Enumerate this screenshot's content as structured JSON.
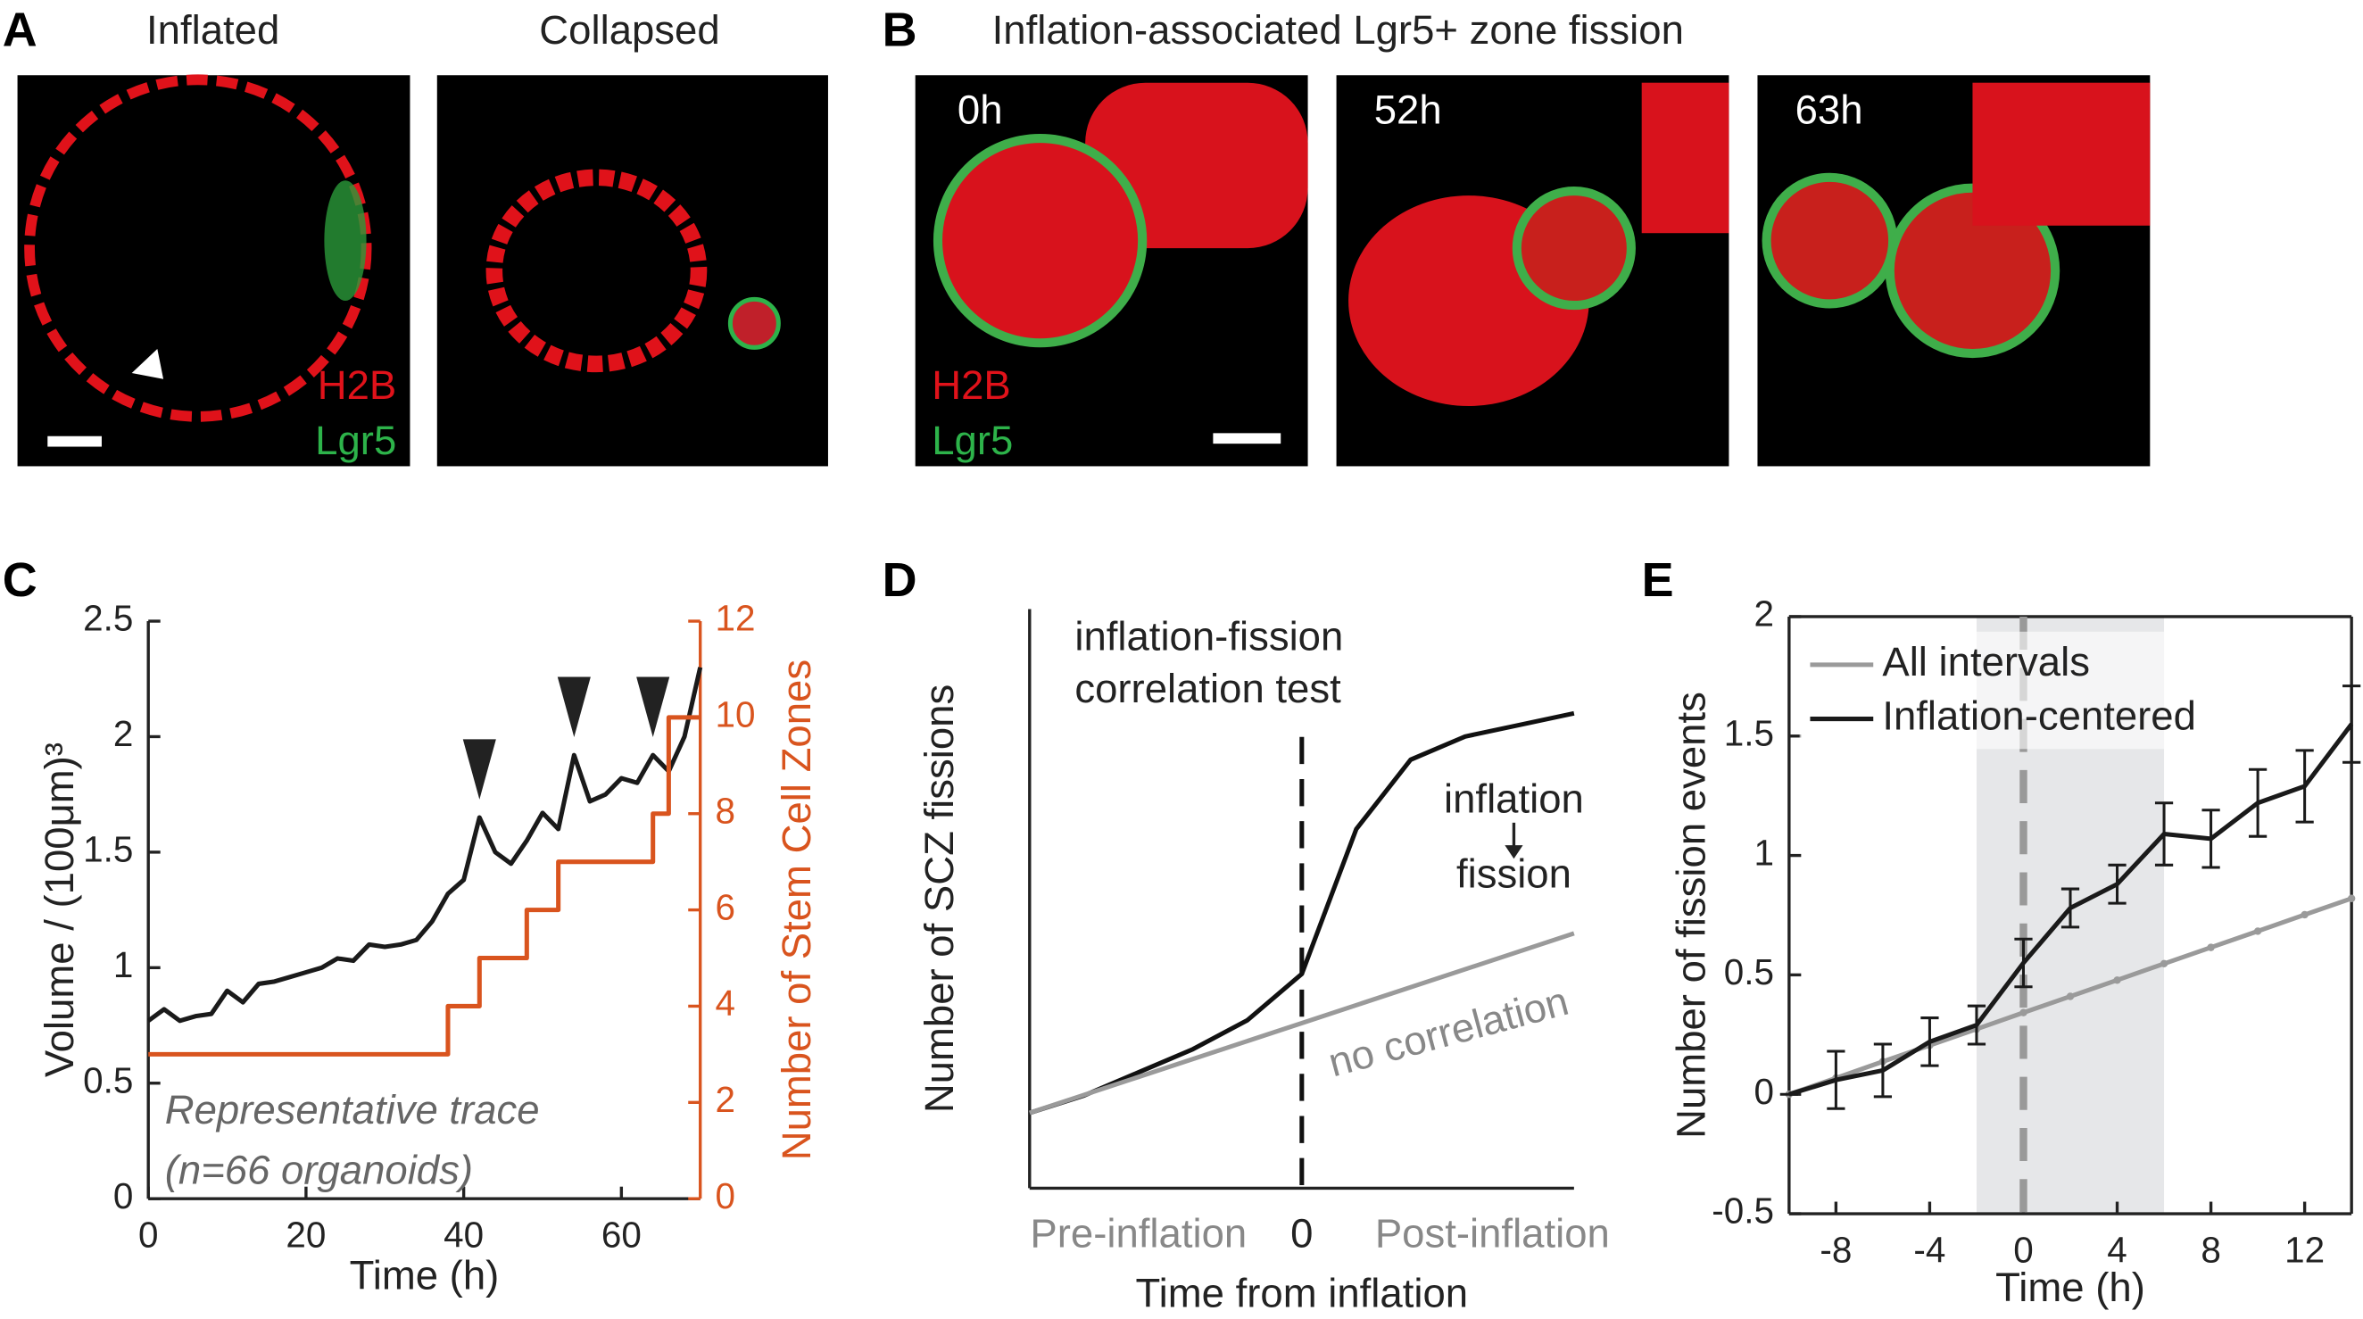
{
  "panels": [
    {
      "letter": "A",
      "images": [
        {
          "title": "Inflated",
          "channels": [
            "H2B",
            "Lgr5"
          ]
        },
        {
          "title": "Collapsed"
        }
      ]
    },
    {
      "letter": "B",
      "title": "Inflation-associated Lgr5+ zone fission",
      "images": [
        {
          "time": "0h",
          "channels": [
            "H2B",
            "Lgr5"
          ]
        },
        {
          "time": "52h"
        },
        {
          "time": "63h"
        }
      ]
    }
  ],
  "chart_data": [
    {
      "type": "line",
      "panel": "C",
      "xlabel": "Time (h)",
      "ylabel": "Volume / (100μm)³",
      "y2label": "Number of Stem Cell Zones",
      "annotation": [
        "Representative trace",
        "(n=66 organoids)"
      ],
      "x": [
        0,
        2,
        4,
        6,
        8,
        10,
        12,
        14,
        16,
        18,
        20,
        22,
        24,
        26,
        28,
        30,
        32,
        34,
        36,
        38,
        40,
        42,
        44,
        46,
        48,
        50,
        52,
        54,
        56,
        58,
        60,
        62,
        64,
        66,
        68,
        70
      ],
      "series": [
        {
          "color": "#1a1a1a",
          "values": [
            0.77,
            0.82,
            0.77,
            0.79,
            0.8,
            0.9,
            0.85,
            0.93,
            0.94,
            0.96,
            0.98,
            1.0,
            1.04,
            1.03,
            1.1,
            1.09,
            1.1,
            1.12,
            1.2,
            1.32,
            1.38,
            1.65,
            1.5,
            1.45,
            1.55,
            1.67,
            1.6,
            1.92,
            1.72,
            1.75,
            1.82,
            1.8,
            1.92,
            1.85,
            2.0,
            2.3
          ]
        },
        {
          "color": "#d9541e",
          "axis": "y2",
          "step": true,
          "x": [
            0,
            38,
            42,
            48,
            52,
            64,
            66
          ],
          "values": [
            3,
            4,
            5,
            6,
            7,
            8,
            10
          ]
        }
      ],
      "peak_arrows_x": [
        42,
        54,
        64
      ],
      "xlim": [
        0,
        70
      ],
      "xticks": [
        0,
        20,
        40,
        60
      ],
      "ylim": [
        0,
        2.5
      ],
      "yticks": [
        0,
        0.5,
        1,
        1.5,
        2,
        2.5
      ],
      "y2lim": [
        0,
        12
      ],
      "y2ticks": [
        0,
        2,
        4,
        6,
        8,
        10,
        12
      ]
    },
    {
      "type": "line",
      "panel": "D",
      "xlabel": "Time from inflation",
      "ylabel": "Number of SCZ fissions",
      "note": [
        "inflation-fission",
        "correlation test"
      ],
      "curve_note": [
        "inflation",
        "fission"
      ],
      "line_note": "no correlation",
      "series": [
        {
          "color": "#111111",
          "x": [
            -1,
            -0.8,
            -0.6,
            -0.4,
            -0.2,
            0,
            0.2,
            0.4,
            0.6,
            0.8,
            1
          ],
          "values": [
            0.13,
            0.16,
            0.2,
            0.24,
            0.29,
            0.37,
            0.62,
            0.74,
            0.78,
            0.8,
            0.82
          ]
        },
        {
          "color": "#9a9a9a",
          "x": [
            -1,
            1
          ],
          "values": [
            0.13,
            0.44
          ]
        }
      ],
      "xlim": [
        -1,
        1
      ],
      "xticks": [
        {
          "value": -0.6,
          "label": "Pre-inflation"
        },
        0,
        {
          "value": 0.7,
          "label": "Post-inflation"
        }
      ],
      "ylim": [
        0,
        1
      ]
    },
    {
      "type": "line",
      "panel": "E",
      "xlabel": "Time (h)",
      "ylabel": "Number of fission events",
      "legend": "upper left",
      "x": [
        -10,
        -8,
        -6,
        -4,
        -2,
        0,
        2,
        4,
        6,
        8,
        10,
        12,
        14
      ],
      "shaded_x": [
        -2,
        6
      ],
      "series": [
        {
          "name": "All intervals",
          "color": "#9a9a9a",
          "values": [
            0,
            0.068,
            0.137,
            0.205,
            0.273,
            0.342,
            0.41,
            0.478,
            0.547,
            0.615,
            0.683,
            0.752,
            0.82
          ]
        },
        {
          "name": "Inflation-centered",
          "color": "#1a1a1a",
          "values": [
            0,
            0.06,
            0.1,
            0.22,
            0.29,
            0.55,
            0.78,
            0.88,
            1.09,
            1.07,
            1.22,
            1.29,
            1.55
          ],
          "errors": [
            0,
            0.12,
            0.11,
            0.1,
            0.08,
            0.1,
            0.08,
            0.08,
            0.13,
            0.12,
            0.14,
            0.15,
            0.16
          ]
        }
      ],
      "xlim": [
        -10,
        14
      ],
      "xticks": [
        -8,
        -4,
        0,
        4,
        8,
        12
      ],
      "ylim": [
        -0.5,
        2
      ],
      "yticks": [
        -0.5,
        0,
        0.5,
        1,
        1.5,
        2
      ]
    }
  ]
}
